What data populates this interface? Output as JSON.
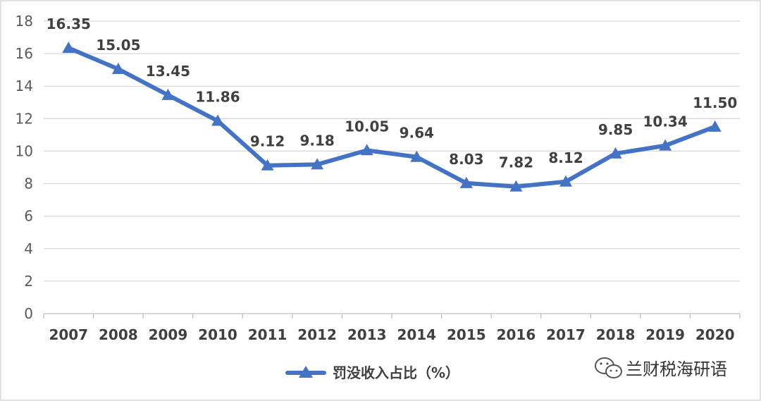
{
  "chart_data": {
    "type": "line",
    "categories": [
      "2007",
      "2008",
      "2009",
      "2010",
      "2011",
      "2012",
      "2013",
      "2014",
      "2015",
      "2016",
      "2017",
      "2018",
      "2019",
      "2020"
    ],
    "series": [
      {
        "name": "罚没收入占比（%）",
        "values": [
          16.35,
          15.05,
          13.45,
          11.86,
          9.12,
          9.18,
          10.05,
          9.64,
          8.03,
          7.82,
          8.12,
          9.85,
          10.34,
          11.5
        ],
        "data_labels": [
          "16.35",
          "15.05",
          "13.45",
          "11.86",
          "9.12",
          "9.18",
          "10.05",
          "9.64",
          "8.03",
          "7.82",
          "8.12",
          "9.85",
          "10.34",
          "11.50"
        ],
        "color": "#4472c4",
        "marker": "triangle"
      }
    ],
    "ylim": [
      0,
      18
    ],
    "yticks": [
      0,
      2,
      4,
      6,
      8,
      10,
      12,
      14,
      16,
      18
    ],
    "grid": true,
    "legend_position": "bottom"
  },
  "watermark": {
    "text": "兰财税海研语",
    "icon": "wechat-icon"
  }
}
